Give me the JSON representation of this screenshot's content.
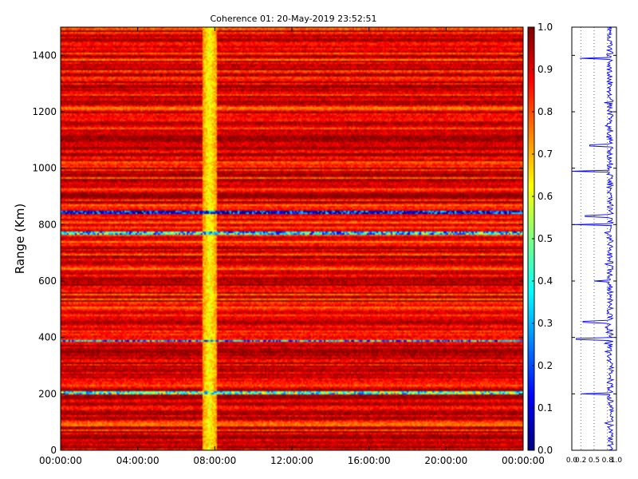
{
  "chart_data": {
    "type": "heatmap",
    "title": "Coherence 01: 20-May-2019 23:52:51",
    "ylabel": "Range (Km)",
    "xlabel": "",
    "x_ticks": [
      "00:00:00",
      "04:00:00",
      "08:00:00",
      "12:00:00",
      "16:00:00",
      "20:00:00",
      "00:00:00"
    ],
    "y_ticks": [
      "0",
      "200",
      "400",
      "600",
      "800",
      "1000",
      "1200",
      "1400"
    ],
    "ylim": [
      0,
      1500
    ],
    "clim": [
      0,
      1
    ],
    "colormap": "jet",
    "colorbar_ticks": [
      "0.0",
      "0.1",
      "0.2",
      "0.3",
      "0.4",
      "0.5",
      "0.6",
      "0.7",
      "0.8",
      "0.9",
      "1.0"
    ],
    "typical_coherence": 0.9,
    "low_coherence_time_band": [
      "07:25",
      "08:00"
    ],
    "low_coherence_time_band_value": 0.62,
    "low_coherence_range_bands": [
      {
        "range_km": 203,
        "value": 0.45
      },
      {
        "range_km": 388,
        "value": 0.3
      },
      {
        "range_km": 768,
        "value": 0.35
      },
      {
        "range_km": 843,
        "value": 0.12
      }
    ],
    "side_profile": {
      "type": "line",
      "x_ticks": [
        "0.0",
        "0.2",
        "0.5",
        "0.8",
        "1.0"
      ],
      "xlim": [
        0,
        1
      ],
      "ylim": [
        0,
        1500
      ],
      "color": "#0000ff",
      "dips": [
        {
          "range_km": 200,
          "value": 0.2
        },
        {
          "range_km": 395,
          "value": 0.1
        },
        {
          "range_km": 455,
          "value": 0.25
        },
        {
          "range_km": 600,
          "value": 0.5
        },
        {
          "range_km": 800,
          "value": 0.02
        },
        {
          "range_km": 830,
          "value": 0.3
        },
        {
          "range_km": 990,
          "value": 0.0
        },
        {
          "range_km": 1080,
          "value": 0.4
        },
        {
          "range_km": 1390,
          "value": 0.18
        }
      ]
    }
  }
}
